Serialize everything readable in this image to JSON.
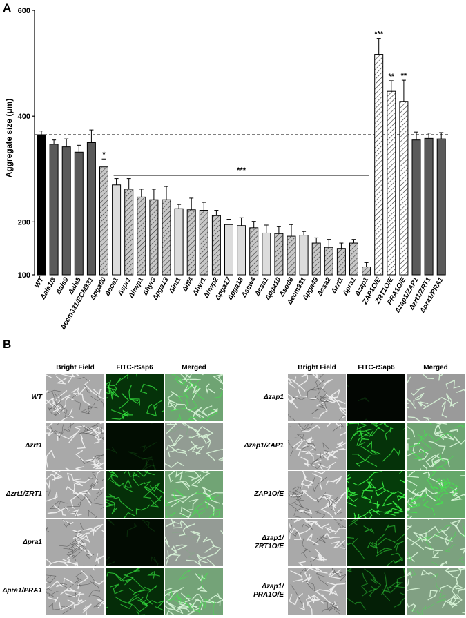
{
  "panel_a_letter": "A",
  "panel_b_letter": "B",
  "chart_data": {
    "type": "bar",
    "ylabel": "Aggregate size (μm)",
    "ylim": [
      100,
      600
    ],
    "yticks": [
      "100",
      "200",
      "400",
      "600"
    ],
    "reference_line": 365,
    "categories": [
      "WT",
      "Δals1/3",
      "Δals9",
      "Δals5",
      "Δecm331/ECM331",
      "Δpga60",
      "Δece1",
      "Δspr1",
      "Δhwp1",
      "Δhyr3",
      "Δpga13",
      "Δint1",
      "Δiff4",
      "Δhyr1",
      "Δhwp2",
      "Δpga17",
      "Δpga18",
      "Δscw4",
      "Δcsa1",
      "Δpga10",
      "Δsod6",
      "Δecm331",
      "Δpga49",
      "Δcsa2",
      "Δzrt1",
      "Δpra1",
      "Δzap1",
      "ZAP1O/E",
      "ZRT1O/E",
      "PRA1O/E",
      "Δzap1/ZAP1",
      "Δzrt1/ZRT1",
      "Δpra1/PRA1"
    ],
    "values": [
      365,
      347,
      342,
      332,
      350,
      304,
      270,
      262,
      247,
      242,
      242,
      225,
      223,
      222,
      212,
      195,
      193,
      189,
      179,
      178,
      173,
      175,
      160,
      152,
      150,
      160,
      115,
      517,
      447,
      428,
      355,
      358,
      357
    ],
    "errors": [
      7,
      8,
      15,
      13,
      24,
      15,
      12,
      20,
      15,
      20,
      25,
      8,
      22,
      15,
      10,
      10,
      15,
      12,
      15,
      13,
      22,
      7,
      10,
      15,
      10,
      7,
      8,
      30,
      20,
      40,
      15,
      10,
      12
    ],
    "fills": [
      "black",
      "dark",
      "dark",
      "dark",
      "dark",
      "hatch",
      "light",
      "hatch",
      "hatch",
      "hatch",
      "hatch",
      "light",
      "hatch",
      "hatch",
      "hatch",
      "light",
      "light",
      "hatch",
      "light",
      "hatch",
      "hatch",
      "light",
      "hatch",
      "hatch",
      "hatch",
      "hatch",
      "hatch",
      "hatchw",
      "hatchw",
      "hatchw",
      "dark",
      "dark",
      "dark"
    ],
    "significance": [
      {
        "bar": 5,
        "text": "*"
      },
      {
        "bar": 27,
        "text": "***"
      },
      {
        "bar": 28,
        "text": "**"
      },
      {
        "bar": 29,
        "text": "**"
      }
    ],
    "bracket": {
      "from": 6,
      "to": 26,
      "text": "***"
    },
    "colors": {
      "black": "#000000",
      "dark": "#5a5a5a",
      "light": "#dcdcdc",
      "hatch_bg": "#c8c8c8",
      "hatch_line": "#333333"
    }
  },
  "panel_b": {
    "left": {
      "headers": [
        "Bright Field",
        "FITC-rSap6",
        "Merged"
      ],
      "rows": [
        "WT",
        "Δzrt1",
        "Δzrt1/ZRT1",
        "Δpra1",
        "Δpra1/PRA1"
      ],
      "fluor": [
        0.8,
        0.15,
        0.75,
        0.1,
        0.7
      ]
    },
    "right": {
      "headers": [
        "Bright Field",
        "FITC-rSap6",
        "Merged"
      ],
      "rows": [
        "Δzap1",
        "Δzap1/ZAP1",
        "ZAP1O/E",
        "Δzap1/\nZRT1O/E",
        "Δzap1/\nPRA1O/E"
      ],
      "fluor": [
        0.02,
        0.8,
        1.0,
        0.55,
        0.45
      ]
    }
  }
}
